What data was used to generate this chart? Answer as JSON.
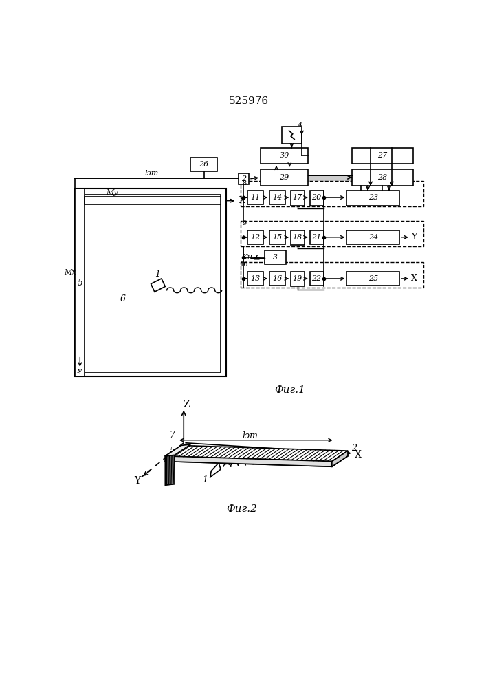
{
  "title": "525976",
  "fig1_label": "Фиг.1",
  "fig2_label": "Фиг.2",
  "background": "#ffffff",
  "line_color": "#000000"
}
